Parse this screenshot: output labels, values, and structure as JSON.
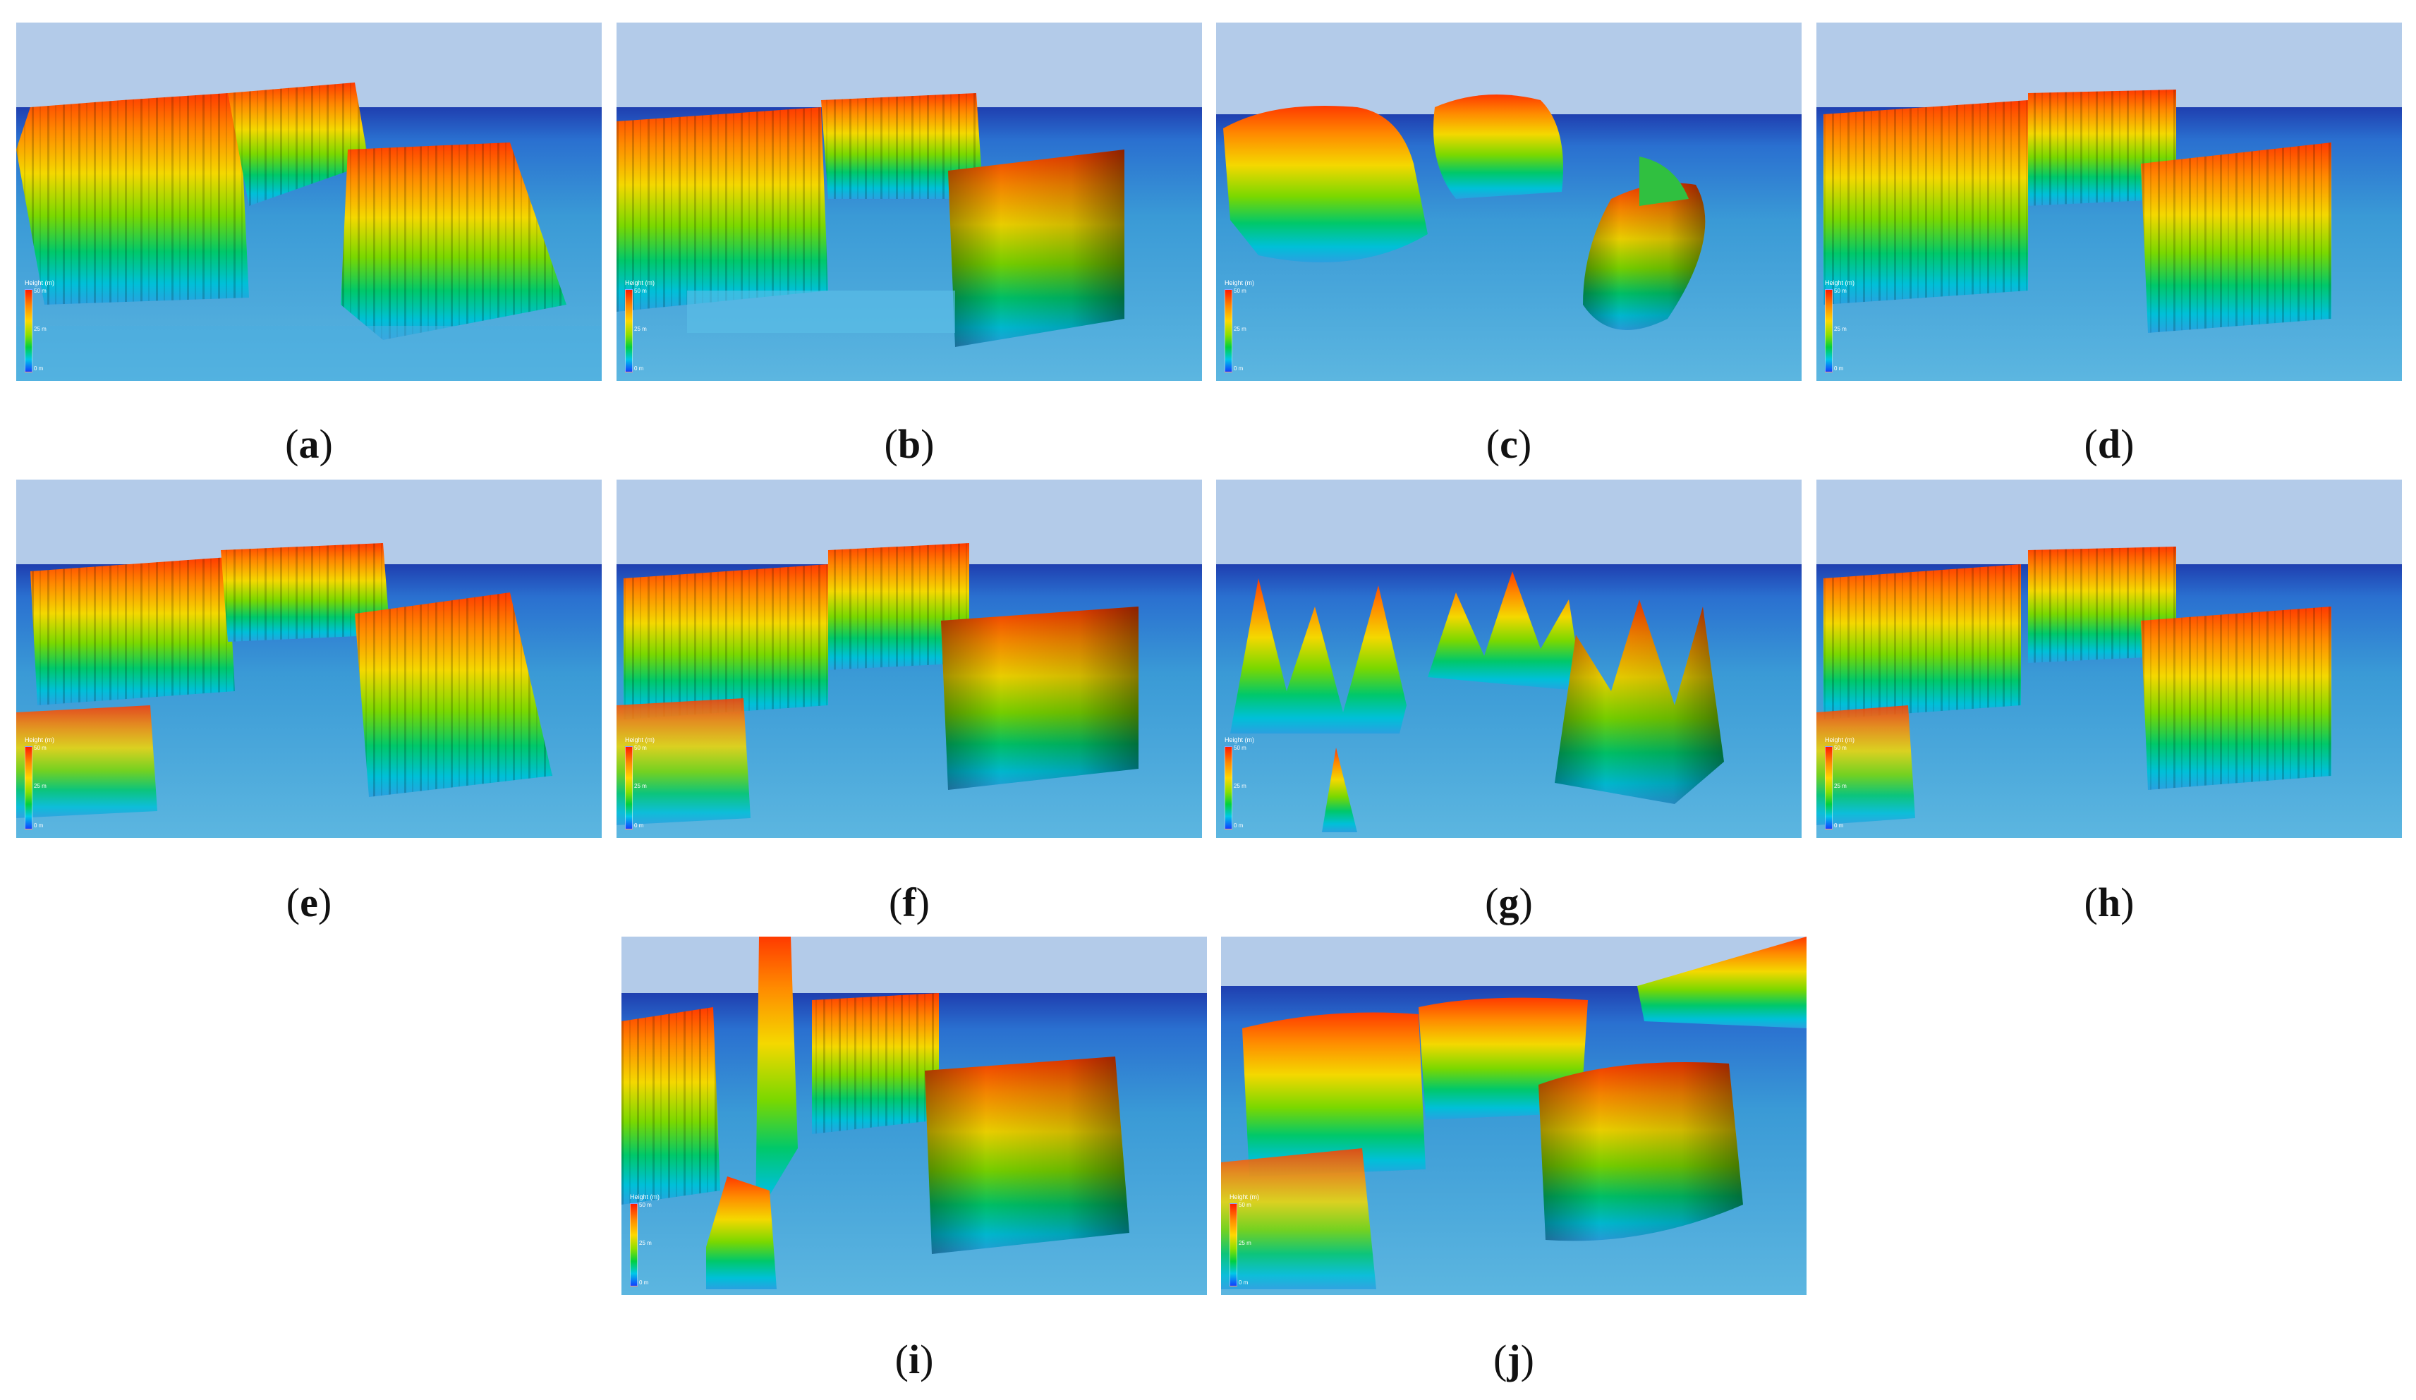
{
  "legend": {
    "title": "Height (m)",
    "max_label": "50 m",
    "mid_label": "25 m",
    "min_label": "0 m"
  },
  "colors": {
    "sky": "#b3cbe9",
    "ground": "#3a9ad6",
    "horizon": "#1f3fb0",
    "high": "#ff3a00",
    "mid": "#ffd800",
    "low": "#00c8a0"
  },
  "panels": [
    {
      "id": "a",
      "letter": "a"
    },
    {
      "id": "b",
      "letter": "b"
    },
    {
      "id": "c",
      "letter": "c"
    },
    {
      "id": "d",
      "letter": "d"
    },
    {
      "id": "e",
      "letter": "e"
    },
    {
      "id": "f",
      "letter": "f"
    },
    {
      "id": "g",
      "letter": "g"
    },
    {
      "id": "h",
      "letter": "h"
    },
    {
      "id": "i",
      "letter": "i"
    },
    {
      "id": "j",
      "letter": "j"
    }
  ]
}
